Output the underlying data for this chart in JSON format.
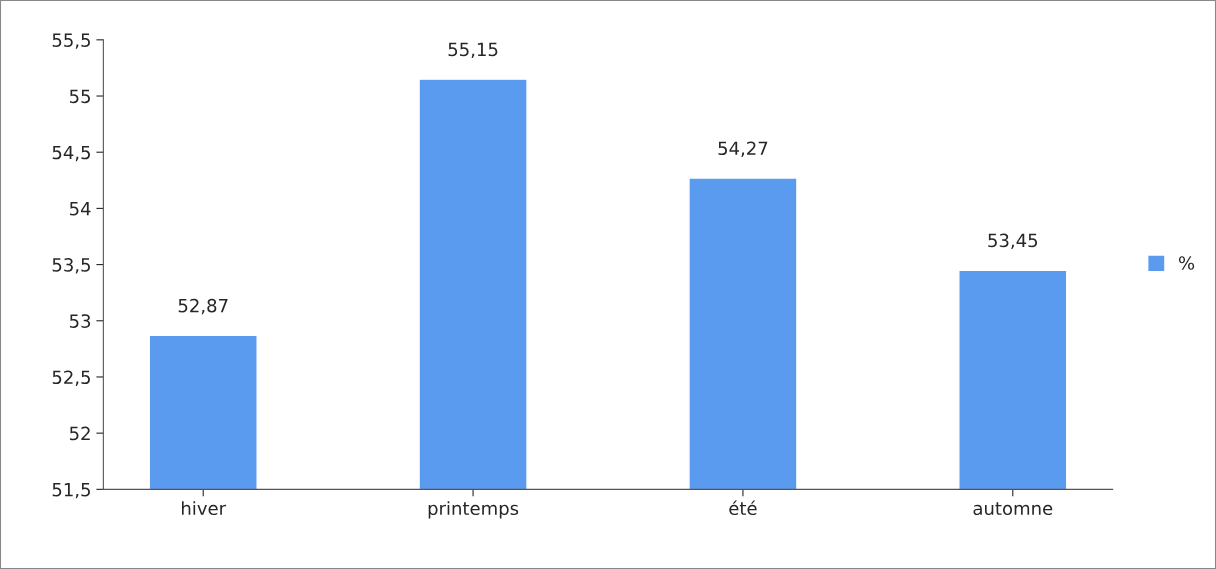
{
  "chart_data": {
    "type": "bar",
    "categories": [
      "hiver",
      "printemps",
      "été",
      "automne"
    ],
    "series": [
      {
        "name": "%",
        "color": "#5b9bef",
        "values": [
          52.87,
          55.15,
          54.27,
          53.45
        ]
      }
    ],
    "value_labels": [
      "52,87",
      "55,15",
      "54,27",
      "53,45"
    ],
    "ylim": [
      51.5,
      55.5
    ],
    "yticks": [
      {
        "value": 51.5,
        "label": "51,5"
      },
      52,
      {
        "value": 52.5,
        "label": "52,5"
      },
      53,
      {
        "value": 53.5,
        "label": "53,5"
      },
      54,
      {
        "value": 54.5,
        "label": "54,5"
      },
      55,
      {
        "value": 55.5,
        "label": "55,5"
      }
    ],
    "legend": "right",
    "grid": false
  }
}
